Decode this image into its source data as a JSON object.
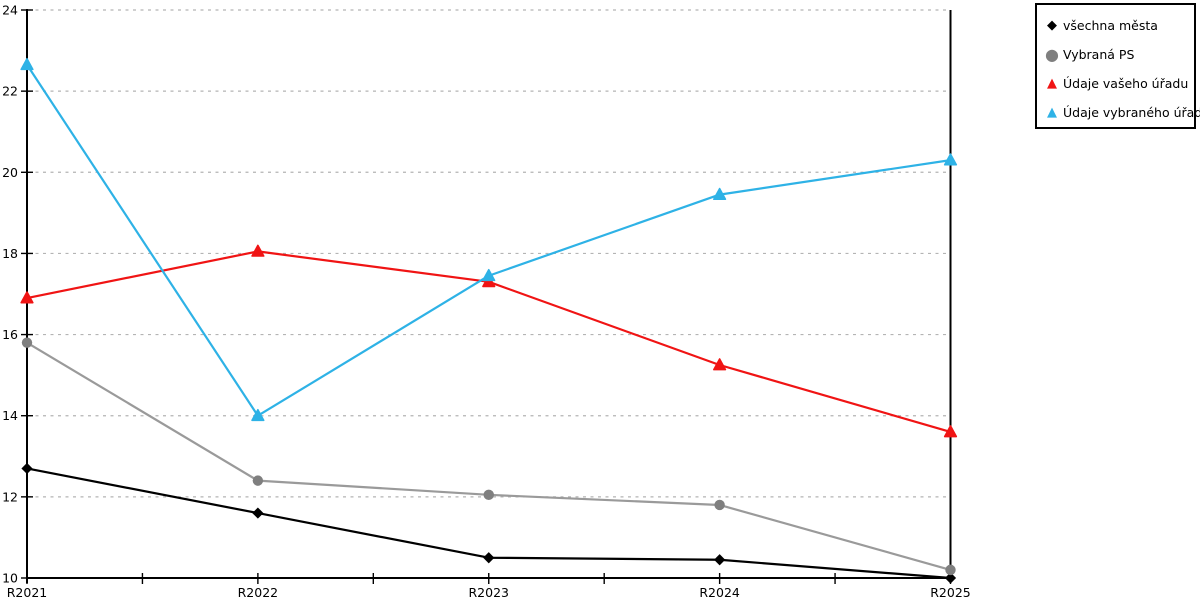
{
  "chart_data": {
    "type": "line",
    "title": "",
    "xlabel": "",
    "ylabel": "",
    "categories": [
      "R2021",
      "R2022",
      "R2023",
      "R2024",
      "R2025"
    ],
    "series": [
      {
        "name": "všechna města",
        "marker": "diamond",
        "color": "#000000",
        "marker_color": "#000000",
        "values": [
          12.7,
          11.6,
          10.5,
          10.45,
          10.0
        ]
      },
      {
        "name": "Vybraná PS",
        "marker": "circle",
        "color": "#9a9a9a",
        "marker_color": "#7f7f7f",
        "values": [
          15.8,
          12.4,
          12.05,
          11.8,
          10.2
        ]
      },
      {
        "name": "Údaje vašeho úřadu",
        "marker": "triangle",
        "color": "#f01414",
        "marker_color": "#f01414",
        "values": [
          16.9,
          18.05,
          17.3,
          15.25,
          13.6
        ]
      },
      {
        "name": "Údaje vybraného úřadu",
        "marker": "triangle",
        "color": "#2eb2e6",
        "marker_color": "#2eb2e6",
        "values": [
          22.65,
          14.0,
          17.45,
          19.45,
          20.3
        ]
      }
    ],
    "ylim": [
      10,
      24
    ],
    "yticks": [
      10,
      12,
      14,
      16,
      18,
      20,
      22,
      24
    ],
    "x_minor_ticks": "midpoints between categories",
    "grid": "horizontal dashed",
    "gridline_color": "#b4b4b4",
    "axis_color": "#000000",
    "plot_border": "left, bottom, right",
    "legend_position": "top-right",
    "marker_glyphs": {
      "diamond": "◆",
      "circle": "●",
      "triangle": "▲"
    }
  }
}
